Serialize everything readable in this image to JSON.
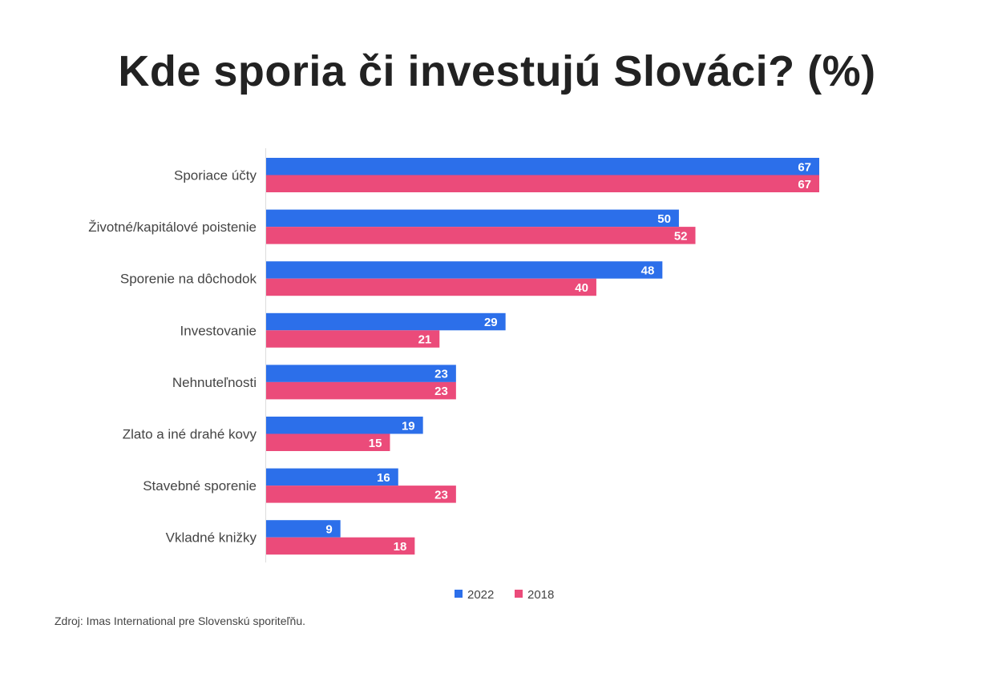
{
  "chart_data": {
    "type": "bar",
    "orientation": "horizontal",
    "title": "Kde sporia či investujú Slováci? (%)",
    "categories": [
      "Sporiace účty",
      "Životné/kapitálové poistenie",
      "Sporenie na dôchodok",
      "Investovanie",
      "Nehnuteľnosti",
      "Zlato a iné drahé kovy",
      "Stavebné sporenie",
      "Vkladné knižky"
    ],
    "series": [
      {
        "name": "2022",
        "color": "#2C6FEA",
        "values": [
          67,
          50,
          48,
          29,
          23,
          19,
          16,
          9
        ]
      },
      {
        "name": "2018",
        "color": "#EB4B7A",
        "values": [
          67,
          52,
          40,
          21,
          23,
          15,
          23,
          18
        ]
      }
    ],
    "xlim": [
      0,
      67
    ],
    "grid": false,
    "data_labels": true,
    "legend": "bottom"
  },
  "source": "Zdroj: Imas International pre Slovenskú sporiteľňu."
}
